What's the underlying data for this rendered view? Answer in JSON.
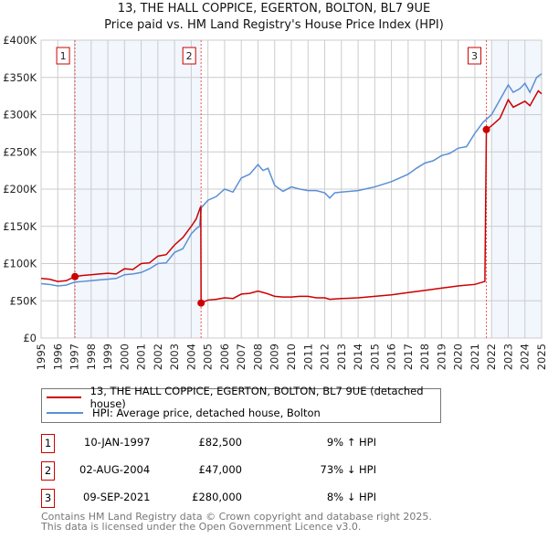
{
  "chart_data": {
    "type": "line",
    "title": "13, THE HALL COPPICE, EGERTON, BOLTON, BL7 9UE",
    "subtitle": "Price paid vs. HM Land Registry's House Price Index (HPI)",
    "xlim": [
      1995,
      2025
    ],
    "ylim": [
      0,
      400000
    ],
    "x_ticks": [
      "1995",
      "1996",
      "1997",
      "1998",
      "1999",
      "2000",
      "2001",
      "2002",
      "2003",
      "2004",
      "2005",
      "2006",
      "2007",
      "2008",
      "2009",
      "2010",
      "2011",
      "2012",
      "2013",
      "2014",
      "2015",
      "2016",
      "2017",
      "2018",
      "2019",
      "2020",
      "2021",
      "2022",
      "2023",
      "2024",
      "2025"
    ],
    "y_ticks": [
      {
        "v": 0,
        "l": "£0"
      },
      {
        "v": 50000,
        "l": "£50K"
      },
      {
        "v": 100000,
        "l": "£100K"
      },
      {
        "v": 150000,
        "l": "£150K"
      },
      {
        "v": 200000,
        "l": "£200K"
      },
      {
        "v": 250000,
        "l": "£250K"
      },
      {
        "v": 300000,
        "l": "£300K"
      },
      {
        "v": 350000,
        "l": "£350K"
      },
      {
        "v": 400000,
        "l": "£400K"
      }
    ],
    "grid": true,
    "shaded_ranges": [
      [
        1997.03,
        2004.59
      ],
      [
        2022.0,
        2025
      ]
    ],
    "series": [
      {
        "name": "13, THE HALL COPPICE, EGERTON, BOLTON, BL7 9UE (detached house)",
        "color": "#cc0000",
        "x": [
          1995,
          1995.5,
          1996,
          1996.5,
          1997.03,
          1997.5,
          1998,
          1998.5,
          1999,
          1999.5,
          2000,
          2000.5,
          2001,
          2001.5,
          2002,
          2002.5,
          2003,
          2003.5,
          2004,
          2004.3,
          2004.57,
          2004.59,
          2005,
          2005.5,
          2006,
          2006.5,
          2007,
          2007.5,
          2008,
          2008.5,
          2009,
          2009.5,
          2010,
          2010.5,
          2011,
          2011.5,
          2012,
          2012.3,
          2013,
          2014,
          2015,
          2016,
          2017,
          2018,
          2019,
          2020,
          2021,
          2021.6,
          2021.69,
          2022,
          2022.5,
          2023,
          2023.3,
          2024,
          2024.3,
          2024.8,
          2025
        ],
        "y": [
          80000,
          79000,
          76000,
          77000,
          82500,
          84000,
          85000,
          86000,
          87000,
          86000,
          93000,
          92000,
          100000,
          101000,
          110000,
          112000,
          125000,
          135000,
          150000,
          160000,
          177000,
          47000,
          51000,
          52000,
          54000,
          53000,
          59000,
          60000,
          63000,
          60000,
          56000,
          55000,
          55000,
          56000,
          56000,
          54000,
          54000,
          52000,
          53000,
          54000,
          56000,
          58000,
          61000,
          64000,
          67000,
          70000,
          72000,
          76000,
          280000,
          285000,
          295000,
          320000,
          310000,
          318000,
          312000,
          332000,
          328000
        ]
      },
      {
        "name": "HPI: Average price, detached house, Bolton",
        "color": "#5b8fd4",
        "x": [
          1995,
          1995.5,
          1996,
          1996.5,
          1997,
          1997.5,
          1998,
          1998.5,
          1999,
          1999.5,
          2000,
          2000.5,
          2001,
          2001.5,
          2002,
          2002.5,
          2003,
          2003.5,
          2004,
          2004.3,
          2004.5,
          2004.6,
          2005,
          2005.5,
          2006,
          2006.5,
          2007,
          2007.5,
          2008,
          2008.3,
          2008.6,
          2009,
          2009.5,
          2010,
          2010.5,
          2011,
          2011.5,
          2012,
          2012.3,
          2012.6,
          2013,
          2014,
          2015,
          2016,
          2017,
          2017.5,
          2018,
          2018.5,
          2019,
          2019.5,
          2020,
          2020.5,
          2021,
          2021.5,
          2022,
          2022.5,
          2023,
          2023.3,
          2023.7,
          2024,
          2024.3,
          2024.7,
          2025
        ],
        "y": [
          73000,
          72000,
          70000,
          71000,
          75000,
          76000,
          77000,
          78000,
          79000,
          80000,
          85000,
          86000,
          88000,
          93000,
          100000,
          101000,
          115000,
          120000,
          140000,
          147000,
          150000,
          175000,
          185000,
          190000,
          200000,
          196000,
          215000,
          220000,
          233000,
          225000,
          228000,
          205000,
          197000,
          203000,
          200000,
          198000,
          198000,
          195000,
          188000,
          195000,
          196000,
          198000,
          203000,
          210000,
          220000,
          228000,
          235000,
          238000,
          245000,
          248000,
          255000,
          257000,
          275000,
          290000,
          300000,
          320000,
          340000,
          330000,
          335000,
          342000,
          330000,
          350000,
          355000
        ]
      }
    ],
    "markers": [
      {
        "label": "1",
        "x": 1997.03,
        "y": 82500
      },
      {
        "label": "2",
        "x": 2004.59,
        "y": 47000
      },
      {
        "label": "3",
        "x": 2021.69,
        "y": 280000
      }
    ]
  },
  "legend": {
    "items": [
      "13, THE HALL COPPICE, EGERTON, BOLTON, BL7 9UE (detached house)",
      "HPI: Average price, detached house, Bolton"
    ]
  },
  "sales": [
    {
      "num": "1",
      "date": "10-JAN-1997",
      "price": "£82,500",
      "hpi": "9% ↑ HPI"
    },
    {
      "num": "2",
      "date": "02-AUG-2004",
      "price": "£47,000",
      "hpi": "73% ↓ HPI"
    },
    {
      "num": "3",
      "date": "09-SEP-2021",
      "price": "£280,000",
      "hpi": "8% ↓ HPI"
    }
  ],
  "footer": {
    "line1": "Contains HM Land Registry data © Crown copyright and database right 2025.",
    "line2": "This data is licensed under the Open Government Licence v3.0."
  }
}
